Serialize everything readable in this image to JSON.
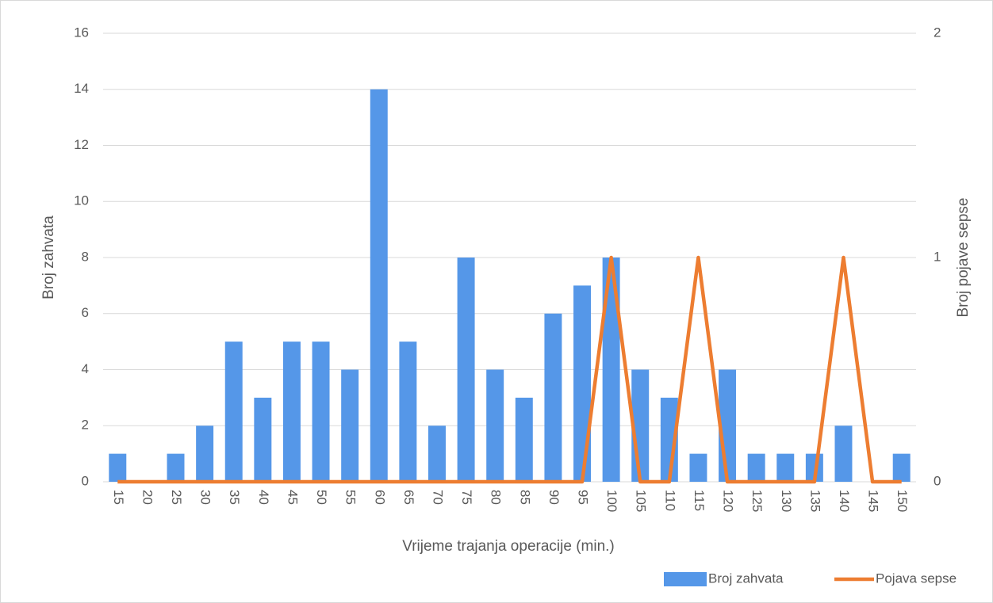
{
  "chart_data": {
    "type": "bar",
    "x_label": "Vrijeme trajanja operacije (min.)",
    "y_label": "Broj zahvata",
    "y2_label": "Broj pojave sepse",
    "categories": [
      "15",
      "20",
      "25",
      "30",
      "35",
      "40",
      "45",
      "50",
      "55",
      "60",
      "65",
      "70",
      "75",
      "80",
      "85",
      "90",
      "95",
      "100",
      "105",
      "110",
      "115",
      "120",
      "125",
      "130",
      "135",
      "140",
      "145",
      "150"
    ],
    "series": [
      {
        "name": "Broj zahvata",
        "type": "bar",
        "color": "#5597e8",
        "values": [
          1,
          0,
          1,
          2,
          5,
          3,
          5,
          5,
          4,
          14,
          5,
          2,
          8,
          4,
          3,
          6,
          7,
          8,
          4,
          3,
          1,
          4,
          1,
          1,
          1,
          2,
          0,
          1
        ]
      },
      {
        "name": "Pojava sepse",
        "type": "line",
        "axis": "y2",
        "color": "#ed7d31",
        "values": [
          0,
          0,
          0,
          0,
          0,
          0,
          0,
          0,
          0,
          0,
          0,
          0,
          0,
          0,
          0,
          0,
          0,
          1,
          0,
          0,
          1,
          0,
          0,
          0,
          0,
          1,
          0,
          0
        ]
      }
    ],
    "ylim": [
      0,
      16
    ],
    "yticks": [
      0,
      2,
      4,
      6,
      8,
      10,
      12,
      14,
      16
    ],
    "y2lim": [
      0,
      2
    ],
    "y2ticks": [
      0,
      1,
      2
    ],
    "grid": true,
    "legend": "bottom-right"
  }
}
